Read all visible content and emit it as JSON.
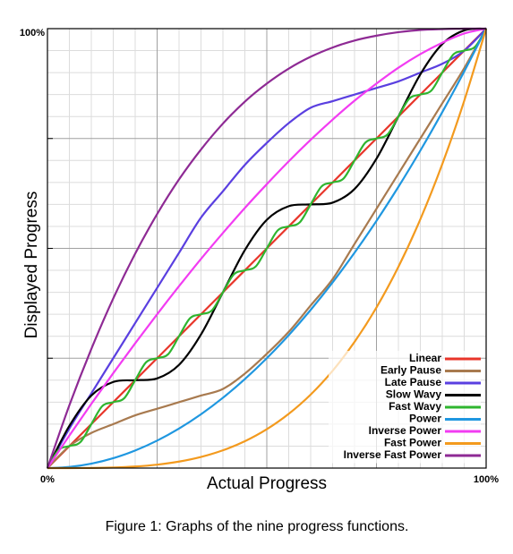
{
  "chart_data": {
    "type": "line",
    "xlabel": "Actual Progress",
    "ylabel": "Displayed Progress",
    "caption": "Figure 1: Graphs of the nine progress functions.",
    "xlim": [
      0,
      100
    ],
    "ylim": [
      0,
      100
    ],
    "xticks": [
      {
        "value": 0,
        "label": "0%"
      },
      {
        "value": 100,
        "label": "100%"
      }
    ],
    "yticks": [
      {
        "value": 100,
        "label": "100%"
      }
    ],
    "grid_major": [
      0,
      25,
      50,
      75,
      100
    ],
    "grid_minor": [
      5,
      10,
      15,
      20,
      30,
      35,
      40,
      45,
      55,
      60,
      65,
      70,
      80,
      85,
      90,
      95
    ],
    "legend": "lower right",
    "series": [
      {
        "name": "Linear",
        "color": "#e8352a",
        "x": [
          0,
          5,
          10,
          15,
          20,
          25,
          30,
          35,
          40,
          45,
          50,
          55,
          60,
          65,
          70,
          75,
          80,
          85,
          90,
          95,
          100
        ],
        "values": [
          0,
          5,
          10,
          15,
          20,
          25,
          30,
          35,
          40,
          45,
          50,
          55,
          60,
          65,
          70,
          75,
          80,
          85,
          90,
          95,
          100
        ]
      },
      {
        "name": "Early Pause",
        "color": "#a87a4f",
        "x": [
          0,
          5,
          10,
          15,
          20,
          25,
          30,
          35,
          40,
          45,
          50,
          55,
          60,
          65,
          70,
          75,
          80,
          85,
          90,
          95,
          100
        ],
        "values": [
          0,
          5,
          8,
          10,
          12,
          13.5,
          15,
          16.5,
          18,
          21.5,
          26,
          31,
          37,
          43,
          51,
          59,
          67,
          75,
          83,
          91,
          100
        ]
      },
      {
        "name": "Late Pause",
        "color": "#5a3fe0",
        "x": [
          0,
          5,
          10,
          15,
          20,
          25,
          30,
          35,
          40,
          45,
          50,
          55,
          60,
          65,
          70,
          75,
          80,
          85,
          90,
          95,
          100
        ],
        "values": [
          0,
          9,
          17,
          25,
          33,
          41,
          49,
          57,
          63,
          69,
          74,
          78.5,
          82,
          83.5,
          85,
          86.5,
          88,
          90,
          92,
          95,
          100
        ]
      },
      {
        "name": "Slow Wavy",
        "color": "#000000",
        "x": [
          0,
          5,
          10,
          15,
          20,
          25,
          30,
          35,
          40,
          45,
          50,
          55,
          60,
          65,
          70,
          75,
          80,
          85,
          90,
          95,
          100
        ],
        "values": [
          0,
          9.6,
          16.5,
          19.6,
          20,
          20.4,
          23.5,
          30.4,
          40,
          49.6,
          56.5,
          59.6,
          60,
          60.4,
          63.5,
          70.4,
          80,
          89.6,
          96.5,
          99.6,
          100
        ]
      },
      {
        "name": "Fast Wavy",
        "color": "#2fb52f",
        "x": [
          0,
          2.5,
          5,
          7.5,
          10,
          12.5,
          15,
          17.5,
          20,
          22.5,
          25,
          27.5,
          30,
          32.5,
          35,
          37.5,
          40,
          42.5,
          45,
          47.5,
          50,
          52.5,
          55,
          57.5,
          60,
          62.5,
          65,
          67.5,
          70,
          72.5,
          75,
          77.5,
          80,
          82.5,
          85,
          87.5,
          90,
          92.5,
          95,
          97.5,
          100
        ],
        "values": [
          0,
          4.1,
          5,
          5.9,
          10,
          14.1,
          15,
          15.9,
          20,
          24.1,
          25,
          25.9,
          30,
          34.1,
          35,
          35.9,
          40,
          44.1,
          45,
          45.9,
          50,
          54.1,
          55,
          55.9,
          60,
          64.1,
          65,
          65.9,
          70,
          74.1,
          75,
          75.9,
          80,
          84.1,
          85,
          85.9,
          90,
          94.1,
          95,
          95.9,
          100
        ]
      },
      {
        "name": "Power",
        "color": "#1f97e0",
        "x": [
          0,
          5,
          10,
          15,
          20,
          25,
          30,
          35,
          40,
          45,
          50,
          55,
          60,
          65,
          70,
          75,
          80,
          85,
          90,
          95,
          100
        ],
        "values": [
          0,
          0.25,
          1,
          2.25,
          4,
          6.25,
          9,
          12.25,
          16,
          20.25,
          25,
          30.25,
          36,
          42.25,
          49,
          56.25,
          64,
          72.25,
          81,
          90.25,
          100
        ]
      },
      {
        "name": "Inverse Power",
        "color": "#f23cf2",
        "x": [
          0,
          5,
          10,
          15,
          20,
          25,
          30,
          35,
          40,
          45,
          50,
          55,
          60,
          65,
          70,
          75,
          80,
          85,
          90,
          95,
          100
        ],
        "values": [
          0,
          7.4,
          14.6,
          21.6,
          28.4,
          35,
          41.4,
          47.6,
          53.5,
          59.2,
          64.6,
          69.8,
          74.7,
          79.3,
          83.6,
          87.5,
          91.1,
          94.2,
          96.8,
          98.9,
          100
        ]
      },
      {
        "name": "Fast Power",
        "color": "#f39a1e",
        "x": [
          0,
          5,
          10,
          15,
          20,
          25,
          30,
          35,
          40,
          45,
          50,
          55,
          60,
          65,
          70,
          75,
          80,
          85,
          90,
          95,
          100
        ],
        "values": [
          0,
          0,
          0.03,
          0.13,
          0.36,
          0.78,
          1.48,
          2.54,
          4.05,
          6.11,
          8.84,
          12.34,
          16.73,
          22.14,
          28.71,
          36.54,
          45.79,
          56.62,
          69.16,
          83.57,
          100
        ]
      },
      {
        "name": "Inverse Fast Power",
        "color": "#8e2a94",
        "x": [
          0,
          5,
          10,
          15,
          20,
          25,
          30,
          35,
          40,
          45,
          50,
          55,
          60,
          65,
          70,
          75,
          80,
          85,
          90,
          95,
          100
        ],
        "values": [
          0,
          14.3,
          27.1,
          38.6,
          48.8,
          57.8,
          65.7,
          72.5,
          78.4,
          83.4,
          87.5,
          90.9,
          93.6,
          95.7,
          97.3,
          98.4,
          99.2,
          99.7,
          99.9,
          100,
          100
        ]
      }
    ]
  }
}
